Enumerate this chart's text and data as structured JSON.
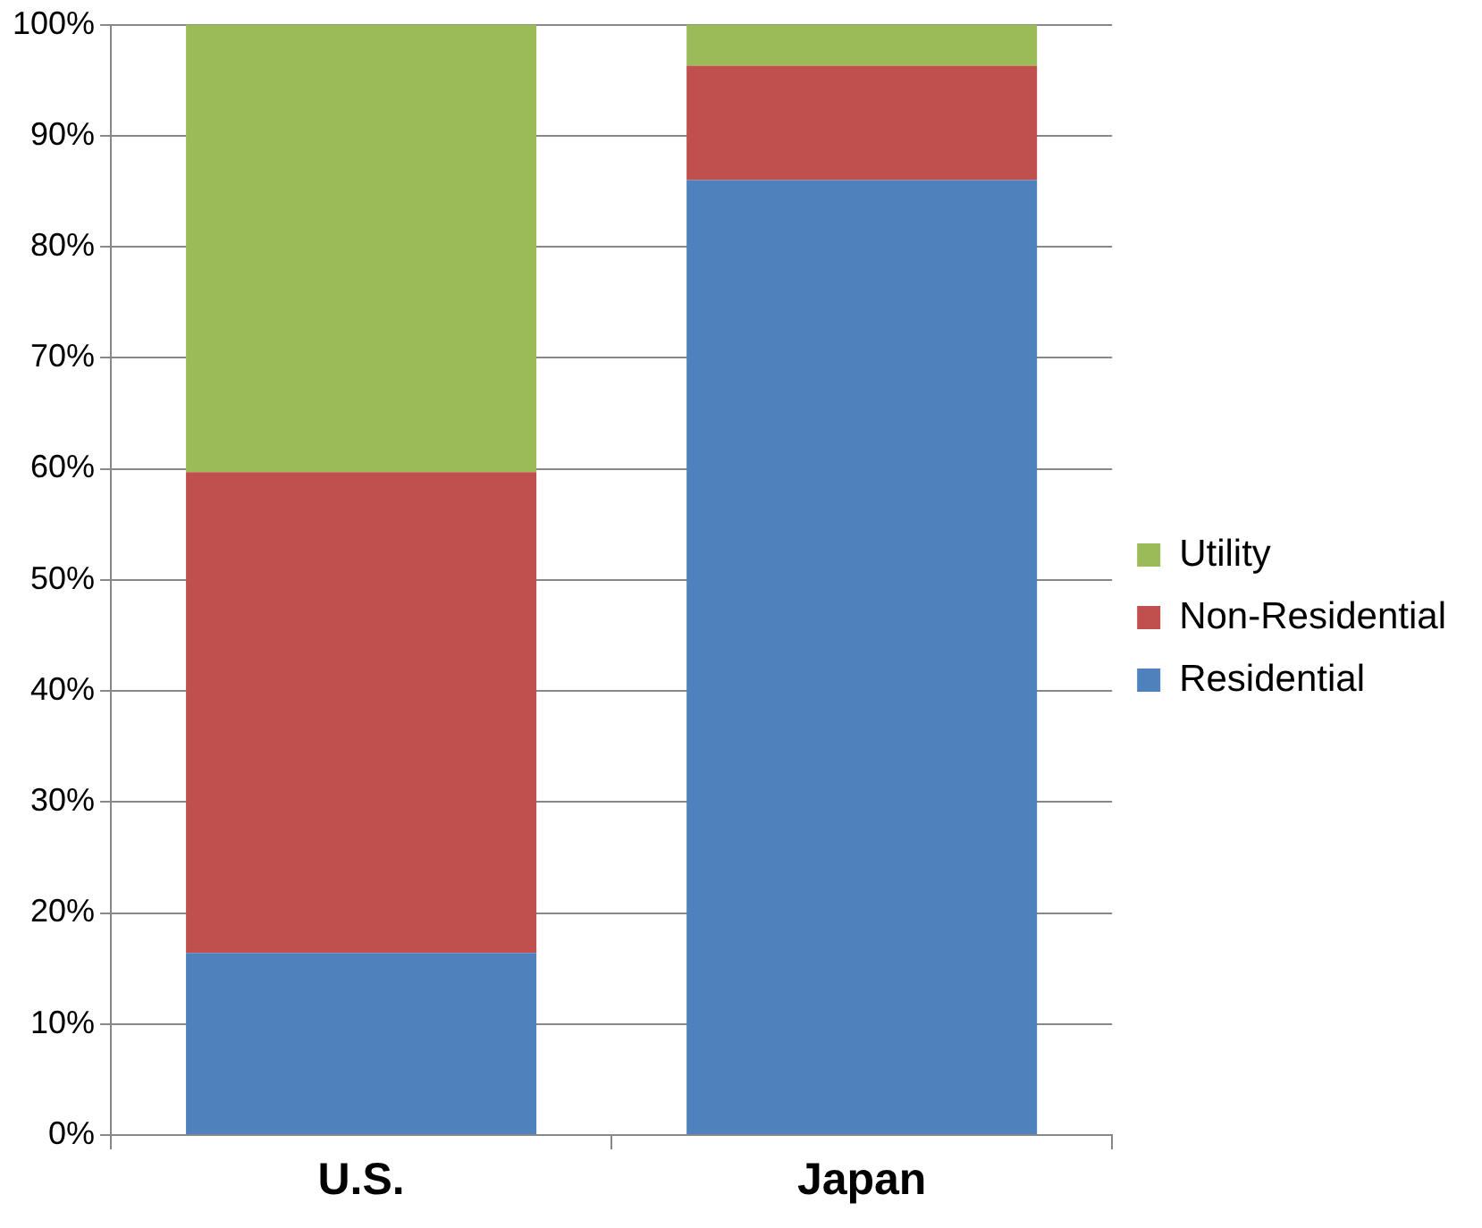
{
  "chart_data": {
    "type": "bar",
    "stacked": true,
    "categories": [
      "U.S.",
      "Japan"
    ],
    "series": [
      {
        "name": "Residential",
        "color": "#4f81bd",
        "values": [
          16.4,
          86
        ]
      },
      {
        "name": "Non-Residential",
        "color": "#c0504d",
        "values": [
          43.3,
          10.3
        ]
      },
      {
        "name": "Utility",
        "color": "#9bbb59",
        "values": [
          40.3,
          3.7
        ]
      }
    ],
    "ylim": [
      0,
      100
    ],
    "yticks": [
      {
        "value": 0,
        "label": "0%"
      },
      {
        "value": 10,
        "label": "10%"
      },
      {
        "value": 20,
        "label": "20%"
      },
      {
        "value": 30,
        "label": "30%"
      },
      {
        "value": 40,
        "label": "40%"
      },
      {
        "value": 50,
        "label": "50%"
      },
      {
        "value": 60,
        "label": "60%"
      },
      {
        "value": 70,
        "label": "70%"
      },
      {
        "value": 80,
        "label": "80%"
      },
      {
        "value": 90,
        "label": "90%"
      },
      {
        "value": 100,
        "label": "100%"
      }
    ],
    "grid": "y",
    "legend": "right"
  }
}
